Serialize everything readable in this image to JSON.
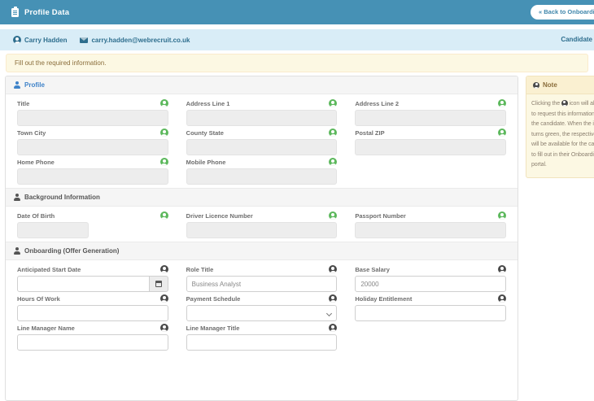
{
  "header": {
    "title": "Profile Data",
    "back_button_label": "« Back to Onboarding Pr"
  },
  "candidate_bar": {
    "name": "Carry Hadden",
    "email": "carry.hadden@webrecruit.co.uk",
    "right_label": "Candidate"
  },
  "alert": {
    "message": "Fill out the required information."
  },
  "colors": {
    "header_bg": "#4691b5",
    "candidate_bar_bg": "#d9edf7",
    "candidate_text": "#2e6e8e",
    "warning_bg": "#fcf8e3",
    "warning_text": "#8a6d3b",
    "request_icon_green": "#5cb85c",
    "request_icon_dark": "#4a4a4a",
    "section_title_blue": "#3f83c9"
  },
  "sections": {
    "profile": {
      "title": "Profile",
      "fields": [
        {
          "label": "Title",
          "value": ""
        },
        {
          "label": "Address Line 1",
          "value": ""
        },
        {
          "label": "Address Line 2",
          "value": ""
        },
        {
          "label": "Town City",
          "value": ""
        },
        {
          "label": "County State",
          "value": ""
        },
        {
          "label": "Postal ZIP",
          "value": ""
        },
        {
          "label": "Home Phone",
          "value": ""
        },
        {
          "label": "Mobile Phone",
          "value": ""
        }
      ]
    },
    "background": {
      "title": "Background Information",
      "fields": [
        {
          "label": "Date Of Birth",
          "value": ""
        },
        {
          "label": "Driver Licence Number",
          "value": ""
        },
        {
          "label": "Passport Number",
          "value": ""
        }
      ]
    },
    "onboarding": {
      "title": "Onboarding (Offer Generation)",
      "fields": [
        {
          "label": "Anticipated Start Date",
          "value": ""
        },
        {
          "label": "Role Title",
          "value": "Business Analyst"
        },
        {
          "label": "Base Salary",
          "value": "20000"
        },
        {
          "label": "Hours Of Work",
          "value": ""
        },
        {
          "label": "Payment Schedule",
          "value": ""
        },
        {
          "label": "Holiday Entitlement",
          "value": ""
        },
        {
          "label": "Line Manager Name",
          "value": ""
        },
        {
          "label": "Line Manager Title",
          "value": ""
        }
      ]
    }
  },
  "note": {
    "title": "Note",
    "line1_before": "Clicking the",
    "line1_after": "icon will allo",
    "lines": [
      "to request this information",
      "the candidate. When the ic",
      "turns green, the respective",
      "will be available for the can",
      "to fill out in their Onboardi",
      "portal."
    ]
  }
}
